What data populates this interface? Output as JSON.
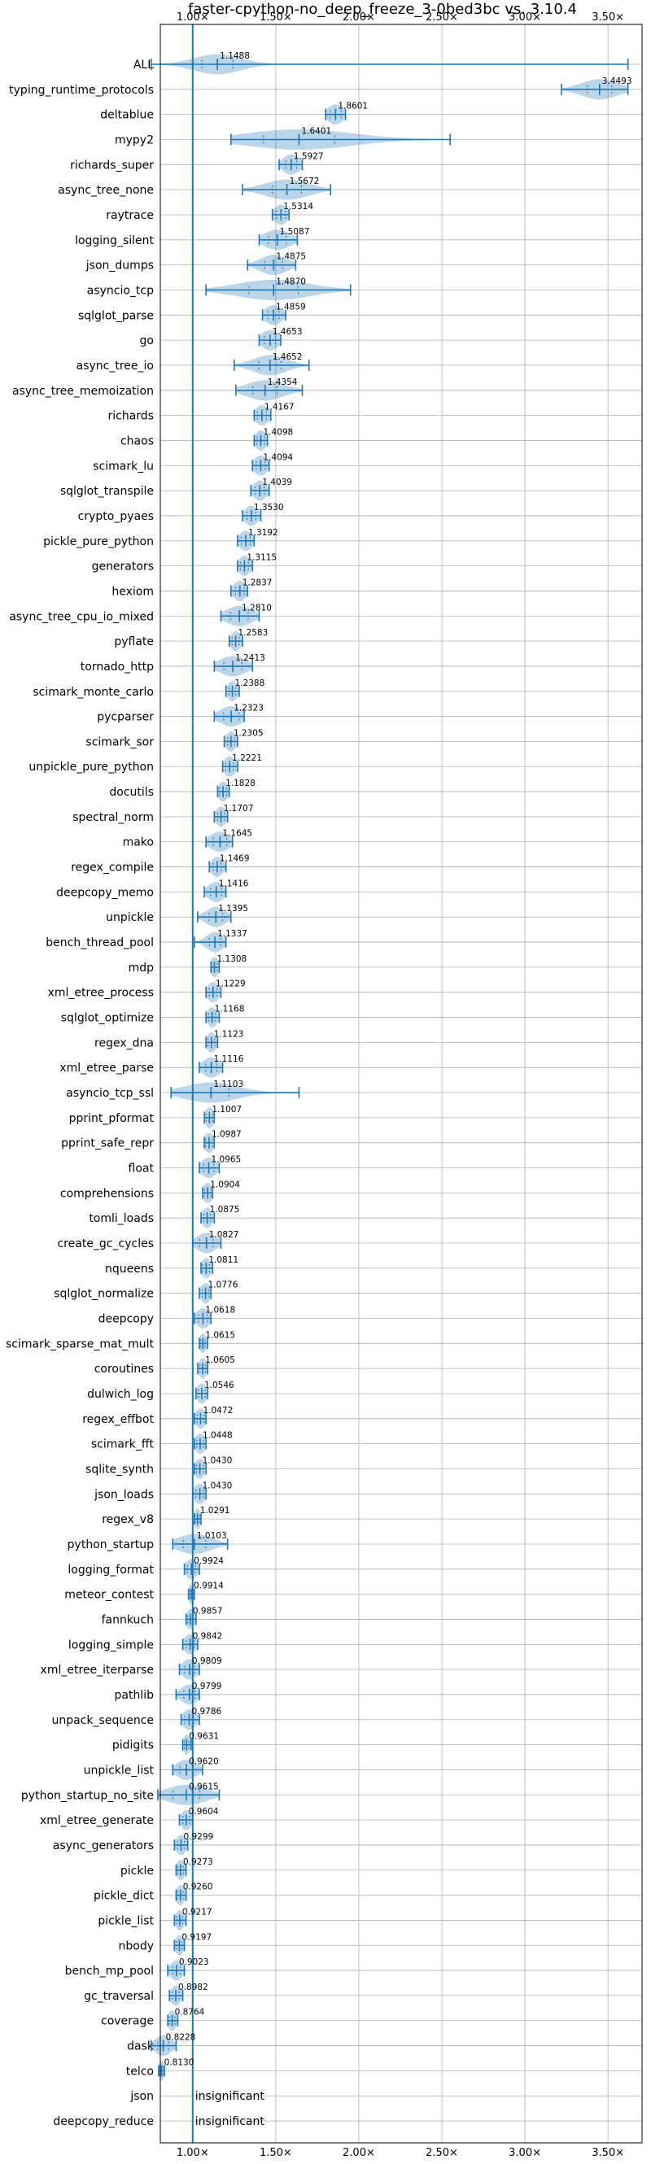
{
  "chart_data": {
    "type": "violin",
    "title": "faster-cpython-no_deep_freeze_3-0bed3bc vs. 3.10.4",
    "xlabel": "",
    "ylabel": "",
    "xlim": [
      0.805,
      3.705
    ],
    "x_ticks": [
      {
        "value": 1.0,
        "label": "1.00×"
      },
      {
        "value": 1.5,
        "label": "1.50×"
      },
      {
        "value": 2.0,
        "label": "2.00×"
      },
      {
        "value": 2.5,
        "label": "2.50×"
      },
      {
        "value": 3.0,
        "label": "3.00×"
      },
      {
        "value": 3.5,
        "label": "3.50×"
      }
    ],
    "grid": true,
    "baseline": 1.0,
    "benchmarks": [
      {
        "name": "ALL",
        "value": 1.1488,
        "label": "1.1488",
        "min": 0.75,
        "max": 3.62,
        "spread": 0.14
      },
      {
        "name": "typing_runtime_protocols",
        "value": 3.4493,
        "label": "3.4493",
        "min": 3.22,
        "max": 3.62,
        "spread": 0.11
      },
      {
        "name": "deltablue",
        "value": 1.8601,
        "label": "1.8601",
        "min": 1.8,
        "max": 1.92,
        "spread": 0.05
      },
      {
        "name": "mypy2",
        "value": 1.6401,
        "label": "1.6401",
        "min": 1.23,
        "max": 2.55,
        "spread": 0.32
      },
      {
        "name": "richards_super",
        "value": 1.5927,
        "label": "1.5927",
        "min": 1.52,
        "max": 1.66,
        "spread": 0.05
      },
      {
        "name": "async_tree_none",
        "value": 1.5672,
        "label": "1.5672",
        "min": 1.3,
        "max": 1.83,
        "spread": 0.13
      },
      {
        "name": "raytrace",
        "value": 1.5314,
        "label": "1.5314",
        "min": 1.48,
        "max": 1.58,
        "spread": 0.04
      },
      {
        "name": "logging_silent",
        "value": 1.5087,
        "label": "1.5087",
        "min": 1.4,
        "max": 1.63,
        "spread": 0.08
      },
      {
        "name": "json_dumps",
        "value": 1.4875,
        "label": "1.4875",
        "min": 1.33,
        "max": 1.62,
        "spread": 0.08
      },
      {
        "name": "asyncio_tcp",
        "value": 1.487,
        "label": "1.4870",
        "min": 1.08,
        "max": 1.95,
        "spread": 0.22
      },
      {
        "name": "sqlglot_parse",
        "value": 1.4859,
        "label": "1.4859",
        "min": 1.42,
        "max": 1.56,
        "spread": 0.05
      },
      {
        "name": "go",
        "value": 1.4653,
        "label": "1.4653",
        "min": 1.4,
        "max": 1.53,
        "spread": 0.05
      },
      {
        "name": "async_tree_io",
        "value": 1.4652,
        "label": "1.4652",
        "min": 1.25,
        "max": 1.7,
        "spread": 0.1
      },
      {
        "name": "async_tree_memoization",
        "value": 1.4354,
        "label": "1.4354",
        "min": 1.26,
        "max": 1.66,
        "spread": 0.11
      },
      {
        "name": "richards",
        "value": 1.4167,
        "label": "1.4167",
        "min": 1.37,
        "max": 1.47,
        "spread": 0.04
      },
      {
        "name": "chaos",
        "value": 1.4098,
        "label": "1.4098",
        "min": 1.37,
        "max": 1.45,
        "spread": 0.035
      },
      {
        "name": "scimark_lu",
        "value": 1.4094,
        "label": "1.4094",
        "min": 1.36,
        "max": 1.46,
        "spread": 0.04
      },
      {
        "name": "sqlglot_transpile",
        "value": 1.4039,
        "label": "1.4039",
        "min": 1.35,
        "max": 1.46,
        "spread": 0.04
      },
      {
        "name": "crypto_pyaes",
        "value": 1.353,
        "label": "1.3530",
        "min": 1.3,
        "max": 1.41,
        "spread": 0.04
      },
      {
        "name": "pickle_pure_python",
        "value": 1.3192,
        "label": "1.3192",
        "min": 1.27,
        "max": 1.37,
        "spread": 0.04
      },
      {
        "name": "generators",
        "value": 1.3115,
        "label": "1.3115",
        "min": 1.27,
        "max": 1.36,
        "spread": 0.035
      },
      {
        "name": "hexiom",
        "value": 1.2837,
        "label": "1.2837",
        "min": 1.23,
        "max": 1.33,
        "spread": 0.04
      },
      {
        "name": "async_tree_cpu_io_mixed",
        "value": 1.281,
        "label": "1.2810",
        "min": 1.17,
        "max": 1.4,
        "spread": 0.08
      },
      {
        "name": "pyflate",
        "value": 1.2583,
        "label": "1.2583",
        "min": 1.22,
        "max": 1.3,
        "spread": 0.03
      },
      {
        "name": "tornado_http",
        "value": 1.2413,
        "label": "1.2413",
        "min": 1.13,
        "max": 1.36,
        "spread": 0.08
      },
      {
        "name": "scimark_monte_carlo",
        "value": 1.2388,
        "label": "1.2388",
        "min": 1.2,
        "max": 1.28,
        "spread": 0.03
      },
      {
        "name": "pycparser",
        "value": 1.2323,
        "label": "1.2323",
        "min": 1.13,
        "max": 1.31,
        "spread": 0.07
      },
      {
        "name": "scimark_sor",
        "value": 1.2305,
        "label": "1.2305",
        "min": 1.19,
        "max": 1.27,
        "spread": 0.03
      },
      {
        "name": "unpickle_pure_python",
        "value": 1.2221,
        "label": "1.2221",
        "min": 1.18,
        "max": 1.27,
        "spread": 0.035
      },
      {
        "name": "docutils",
        "value": 1.1828,
        "label": "1.1828",
        "min": 1.15,
        "max": 1.22,
        "spread": 0.03
      },
      {
        "name": "spectral_norm",
        "value": 1.1707,
        "label": "1.1707",
        "min": 1.13,
        "max": 1.21,
        "spread": 0.03
      },
      {
        "name": "mako",
        "value": 1.1645,
        "label": "1.1645",
        "min": 1.08,
        "max": 1.24,
        "spread": 0.06
      },
      {
        "name": "regex_compile",
        "value": 1.1469,
        "label": "1.1469",
        "min": 1.1,
        "max": 1.2,
        "spread": 0.035
      },
      {
        "name": "deepcopy_memo",
        "value": 1.1416,
        "label": "1.1416",
        "min": 1.07,
        "max": 1.2,
        "spread": 0.05
      },
      {
        "name": "unpickle",
        "value": 1.1395,
        "label": "1.1395",
        "min": 1.03,
        "max": 1.23,
        "spread": 0.06
      },
      {
        "name": "bench_thread_pool",
        "value": 1.1337,
        "label": "1.1337",
        "min": 1.01,
        "max": 1.2,
        "spread": 0.05
      },
      {
        "name": "mdp",
        "value": 1.1308,
        "label": "1.1308",
        "min": 1.11,
        "max": 1.16,
        "spread": 0.025
      },
      {
        "name": "xml_etree_process",
        "value": 1.1229,
        "label": "1.1229",
        "min": 1.08,
        "max": 1.17,
        "spread": 0.035
      },
      {
        "name": "sqlglot_optimize",
        "value": 1.1168,
        "label": "1.1168",
        "min": 1.08,
        "max": 1.16,
        "spread": 0.03
      },
      {
        "name": "regex_dna",
        "value": 1.1123,
        "label": "1.1123",
        "min": 1.08,
        "max": 1.15,
        "spread": 0.03
      },
      {
        "name": "xml_etree_parse",
        "value": 1.1116,
        "label": "1.1116",
        "min": 1.04,
        "max": 1.18,
        "spread": 0.05
      },
      {
        "name": "asyncio_tcp_ssl",
        "value": 1.1103,
        "label": "1.1103",
        "min": 0.87,
        "max": 1.64,
        "spread": 0.16
      },
      {
        "name": "pprint_pformat",
        "value": 1.1007,
        "label": "1.1007",
        "min": 1.07,
        "max": 1.13,
        "spread": 0.03
      },
      {
        "name": "pprint_safe_repr",
        "value": 1.0987,
        "label": "1.0987",
        "min": 1.07,
        "max": 1.13,
        "spread": 0.03
      },
      {
        "name": "float",
        "value": 1.0965,
        "label": "1.0965",
        "min": 1.04,
        "max": 1.16,
        "spread": 0.045
      },
      {
        "name": "comprehensions",
        "value": 1.0904,
        "label": "1.0904",
        "min": 1.06,
        "max": 1.12,
        "spread": 0.03
      },
      {
        "name": "tomli_loads",
        "value": 1.0875,
        "label": "1.0875",
        "min": 1.05,
        "max": 1.13,
        "spread": 0.03
      },
      {
        "name": "create_gc_cycles",
        "value": 1.0827,
        "label": "1.0827",
        "min": 1.0,
        "max": 1.17,
        "spread": 0.06
      },
      {
        "name": "nqueens",
        "value": 1.0811,
        "label": "1.0811",
        "min": 1.05,
        "max": 1.12,
        "spread": 0.03
      },
      {
        "name": "sqlglot_normalize",
        "value": 1.0776,
        "label": "1.0776",
        "min": 1.04,
        "max": 1.11,
        "spread": 0.03
      },
      {
        "name": "deepcopy",
        "value": 1.0618,
        "label": "1.0618",
        "min": 1.01,
        "max": 1.11,
        "spread": 0.04
      },
      {
        "name": "scimark_sparse_mat_mult",
        "value": 1.0615,
        "label": "1.0615",
        "min": 1.04,
        "max": 1.09,
        "spread": 0.02
      },
      {
        "name": "coroutines",
        "value": 1.0605,
        "label": "1.0605",
        "min": 1.03,
        "max": 1.09,
        "spread": 0.025
      },
      {
        "name": "dulwich_log",
        "value": 1.0546,
        "label": "1.0546",
        "min": 1.02,
        "max": 1.09,
        "spread": 0.03
      },
      {
        "name": "regex_effbot",
        "value": 1.0472,
        "label": "1.0472",
        "min": 1.01,
        "max": 1.08,
        "spread": 0.03
      },
      {
        "name": "scimark_fft",
        "value": 1.0448,
        "label": "1.0448",
        "min": 1.01,
        "max": 1.08,
        "spread": 0.03
      },
      {
        "name": "sqlite_synth",
        "value": 1.043,
        "label": "1.0430",
        "min": 1.01,
        "max": 1.08,
        "spread": 0.03
      },
      {
        "name": "json_loads",
        "value": 1.043,
        "label": "1.0430",
        "min": 1.0,
        "max": 1.08,
        "spread": 0.035
      },
      {
        "name": "regex_v8",
        "value": 1.0291,
        "label": "1.0291",
        "min": 1.01,
        "max": 1.05,
        "spread": 0.02
      },
      {
        "name": "python_startup",
        "value": 1.0103,
        "label": "1.0103",
        "min": 0.88,
        "max": 1.21,
        "spread": 0.1
      },
      {
        "name": "logging_format",
        "value": 0.9924,
        "label": "0.9924",
        "min": 0.95,
        "max": 1.04,
        "spread": 0.035
      },
      {
        "name": "meteor_contest",
        "value": 0.9914,
        "label": "0.9914",
        "min": 0.975,
        "max": 1.01,
        "spread": 0.015
      },
      {
        "name": "fannkuch",
        "value": 0.9857,
        "label": "0.9857",
        "min": 0.96,
        "max": 1.02,
        "spread": 0.025
      },
      {
        "name": "logging_simple",
        "value": 0.9842,
        "label": "0.9842",
        "min": 0.94,
        "max": 1.03,
        "spread": 0.035
      },
      {
        "name": "xml_etree_iterparse",
        "value": 0.9809,
        "label": "0.9809",
        "min": 0.92,
        "max": 1.04,
        "spread": 0.045
      },
      {
        "name": "pathlib",
        "value": 0.9799,
        "label": "0.9799",
        "min": 0.9,
        "max": 1.04,
        "spread": 0.05
      },
      {
        "name": "unpack_sequence",
        "value": 0.9786,
        "label": "0.9786",
        "min": 0.93,
        "max": 1.04,
        "spread": 0.04
      },
      {
        "name": "pidigits",
        "value": 0.9631,
        "label": "0.9631",
        "min": 0.94,
        "max": 0.99,
        "spread": 0.02
      },
      {
        "name": "unpickle_list",
        "value": 0.962,
        "label": "0.9620",
        "min": 0.88,
        "max": 1.06,
        "spread": 0.06
      },
      {
        "name": "python_startup_no_site",
        "value": 0.9615,
        "label": "0.9615",
        "min": 0.79,
        "max": 1.16,
        "spread": 0.12
      },
      {
        "name": "xml_etree_generate",
        "value": 0.9604,
        "label": "0.9604",
        "min": 0.92,
        "max": 1.0,
        "spread": 0.03
      },
      {
        "name": "async_generators",
        "value": 0.9299,
        "label": "0.9299",
        "min": 0.89,
        "max": 0.97,
        "spread": 0.03
      },
      {
        "name": "pickle",
        "value": 0.9273,
        "label": "0.9273",
        "min": 0.9,
        "max": 0.96,
        "spread": 0.025
      },
      {
        "name": "pickle_dict",
        "value": 0.926,
        "label": "0.9260",
        "min": 0.9,
        "max": 0.96,
        "spread": 0.025
      },
      {
        "name": "pickle_list",
        "value": 0.9217,
        "label": "0.9217",
        "min": 0.89,
        "max": 0.96,
        "spread": 0.025
      },
      {
        "name": "nbody",
        "value": 0.9197,
        "label": "0.9197",
        "min": 0.89,
        "max": 0.95,
        "spread": 0.025
      },
      {
        "name": "bench_mp_pool",
        "value": 0.9023,
        "label": "0.9023",
        "min": 0.85,
        "max": 0.95,
        "spread": 0.035
      },
      {
        "name": "gc_traversal",
        "value": 0.8982,
        "label": "0.8982",
        "min": 0.86,
        "max": 0.94,
        "spread": 0.03
      },
      {
        "name": "coverage",
        "value": 0.8764,
        "label": "0.8764",
        "min": 0.85,
        "max": 0.91,
        "spread": 0.025
      },
      {
        "name": "dask",
        "value": 0.8228,
        "label": "0.8228",
        "min": 0.75,
        "max": 0.9,
        "spread": 0.05
      },
      {
        "name": "telco",
        "value": 0.813,
        "label": "0.8130",
        "min": 0.795,
        "max": 0.83,
        "spread": 0.015
      },
      {
        "name": "json",
        "value": null,
        "label": "insignificant"
      },
      {
        "name": "deepcopy_reduce",
        "value": null,
        "label": "insignificant"
      }
    ]
  }
}
